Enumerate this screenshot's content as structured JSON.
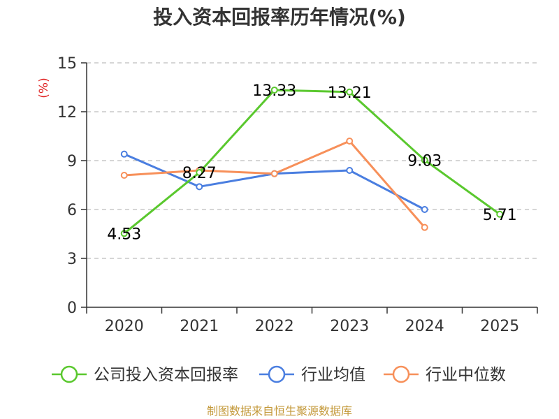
{
  "chart_data": {
    "type": "line",
    "title": "投入资本回报率历年情况(%)",
    "ylabel": "(%)",
    "xlabel": "",
    "categories": [
      "2020",
      "2021",
      "2022",
      "2023",
      "2024",
      "2025"
    ],
    "ylim": [
      0,
      15
    ],
    "yticks": [
      0,
      3,
      6,
      9,
      12,
      15
    ],
    "grid": true,
    "legend_position": "bottom",
    "series": [
      {
        "name": "公司投入资本回报率",
        "color": "#5ac82e",
        "values": [
          4.53,
          8.27,
          13.33,
          13.21,
          9.03,
          5.71
        ],
        "labels": [
          "4.53",
          "8.27",
          "13.33",
          "13.21",
          "9.03",
          "5.71"
        ]
      },
      {
        "name": "行业均值",
        "color": "#4a7ee0",
        "values": [
          9.4,
          7.4,
          8.2,
          8.4,
          6.0,
          null
        ],
        "labels": []
      },
      {
        "name": "行业中位数",
        "color": "#f7905a",
        "values": [
          8.1,
          8.4,
          8.2,
          10.2,
          4.9,
          null
        ],
        "labels": []
      }
    ]
  },
  "source": {
    "text": "制图数据来自恒生聚源数据库",
    "color": "#c49a3c"
  },
  "unit_color": "#e02020"
}
